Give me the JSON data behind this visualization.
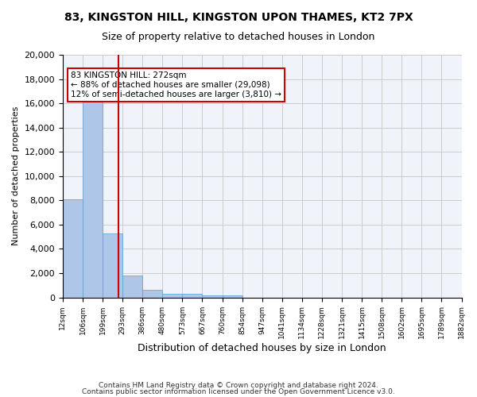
{
  "title_line1": "83, KINGSTON HILL, KINGSTON UPON THAMES, KT2 7PX",
  "title_line2": "Size of property relative to detached houses in London",
  "xlabel": "Distribution of detached houses by size in London",
  "ylabel": "Number of detached properties",
  "bar_color": "#aec6e8",
  "bar_edge_color": "#5a9fd4",
  "grid_color": "#cccccc",
  "background_color": "#f0f4fa",
  "annotation_line_color": "#cc0000",
  "annotation_box_color": "#cc0000",
  "annotation_text": "83 KINGSTON HILL: 272sqm\n← 88% of detached houses are smaller (29,098)\n12% of semi-detached houses are larger (3,810) →",
  "property_size": 272,
  "bins": [
    12,
    106,
    199,
    293,
    386,
    480,
    573,
    667,
    760,
    854,
    947,
    1041,
    1134,
    1228,
    1321,
    1415,
    1508,
    1602,
    1695,
    1789,
    1882
  ],
  "counts": [
    8100,
    16500,
    5300,
    1800,
    650,
    330,
    280,
    200,
    200,
    0,
    0,
    0,
    0,
    0,
    0,
    0,
    0,
    0,
    0,
    0
  ],
  "ylim": [
    0,
    20000
  ],
  "yticks": [
    0,
    2000,
    4000,
    6000,
    8000,
    10000,
    12000,
    14000,
    16000,
    18000,
    20000
  ],
  "footer_line1": "Contains HM Land Registry data © Crown copyright and database right 2024.",
  "footer_line2": "Contains public sector information licensed under the Open Government Licence v3.0."
}
